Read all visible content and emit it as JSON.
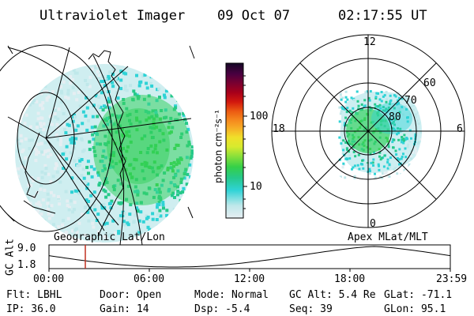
{
  "header": {
    "instrument": "Ultraviolet Imager",
    "date": "09 Oct 07",
    "time": "02:17:55 UT"
  },
  "colorbar": {
    "unit_label": "photon cm⁻²s⁻¹",
    "ticks": [
      "100",
      "10"
    ],
    "scale": "log",
    "colors": [
      "#e6eef2",
      "#bfe8ea",
      "#2fd3d6",
      "#26c98a",
      "#35d048",
      "#8be03a",
      "#d7ea2e",
      "#f0e02a",
      "#f6ad26",
      "#f58a1e",
      "#ec5a12",
      "#d2180e",
      "#a8001a",
      "#7a0030",
      "#4a0040",
      "#140826",
      "#000000"
    ]
  },
  "geo_panel": {
    "label": "Geographic Lat/Lon"
  },
  "polar_panel": {
    "label": "Apex MLat/MLT",
    "mlt_labels": {
      "top": "12",
      "left": "18",
      "right": "6",
      "bottom": "0"
    },
    "lat_labels": [
      "60",
      "70",
      "80"
    ]
  },
  "altitude_plot": {
    "ylabel": "GC Alt",
    "yticks": [
      "9.0",
      "1.8"
    ],
    "xticks": [
      "00:00",
      "06:00",
      "12:00",
      "18:00",
      "23:59"
    ],
    "marker_color": "#c03020"
  },
  "info": {
    "row1": {
      "filter": "Flt: LBHL",
      "door": "Door: Open",
      "mode": "Mode: Normal",
      "gc_alt": "GC Alt: 5.4 Re",
      "glat": "GLat: -71.1"
    },
    "row2": {
      "ip": "IP: 36.0",
      "gain": "Gain: 14",
      "dsp": "Dsp:   -5.4",
      "seq": "Seq: 39",
      "glon": "GLon:  95.1"
    }
  }
}
